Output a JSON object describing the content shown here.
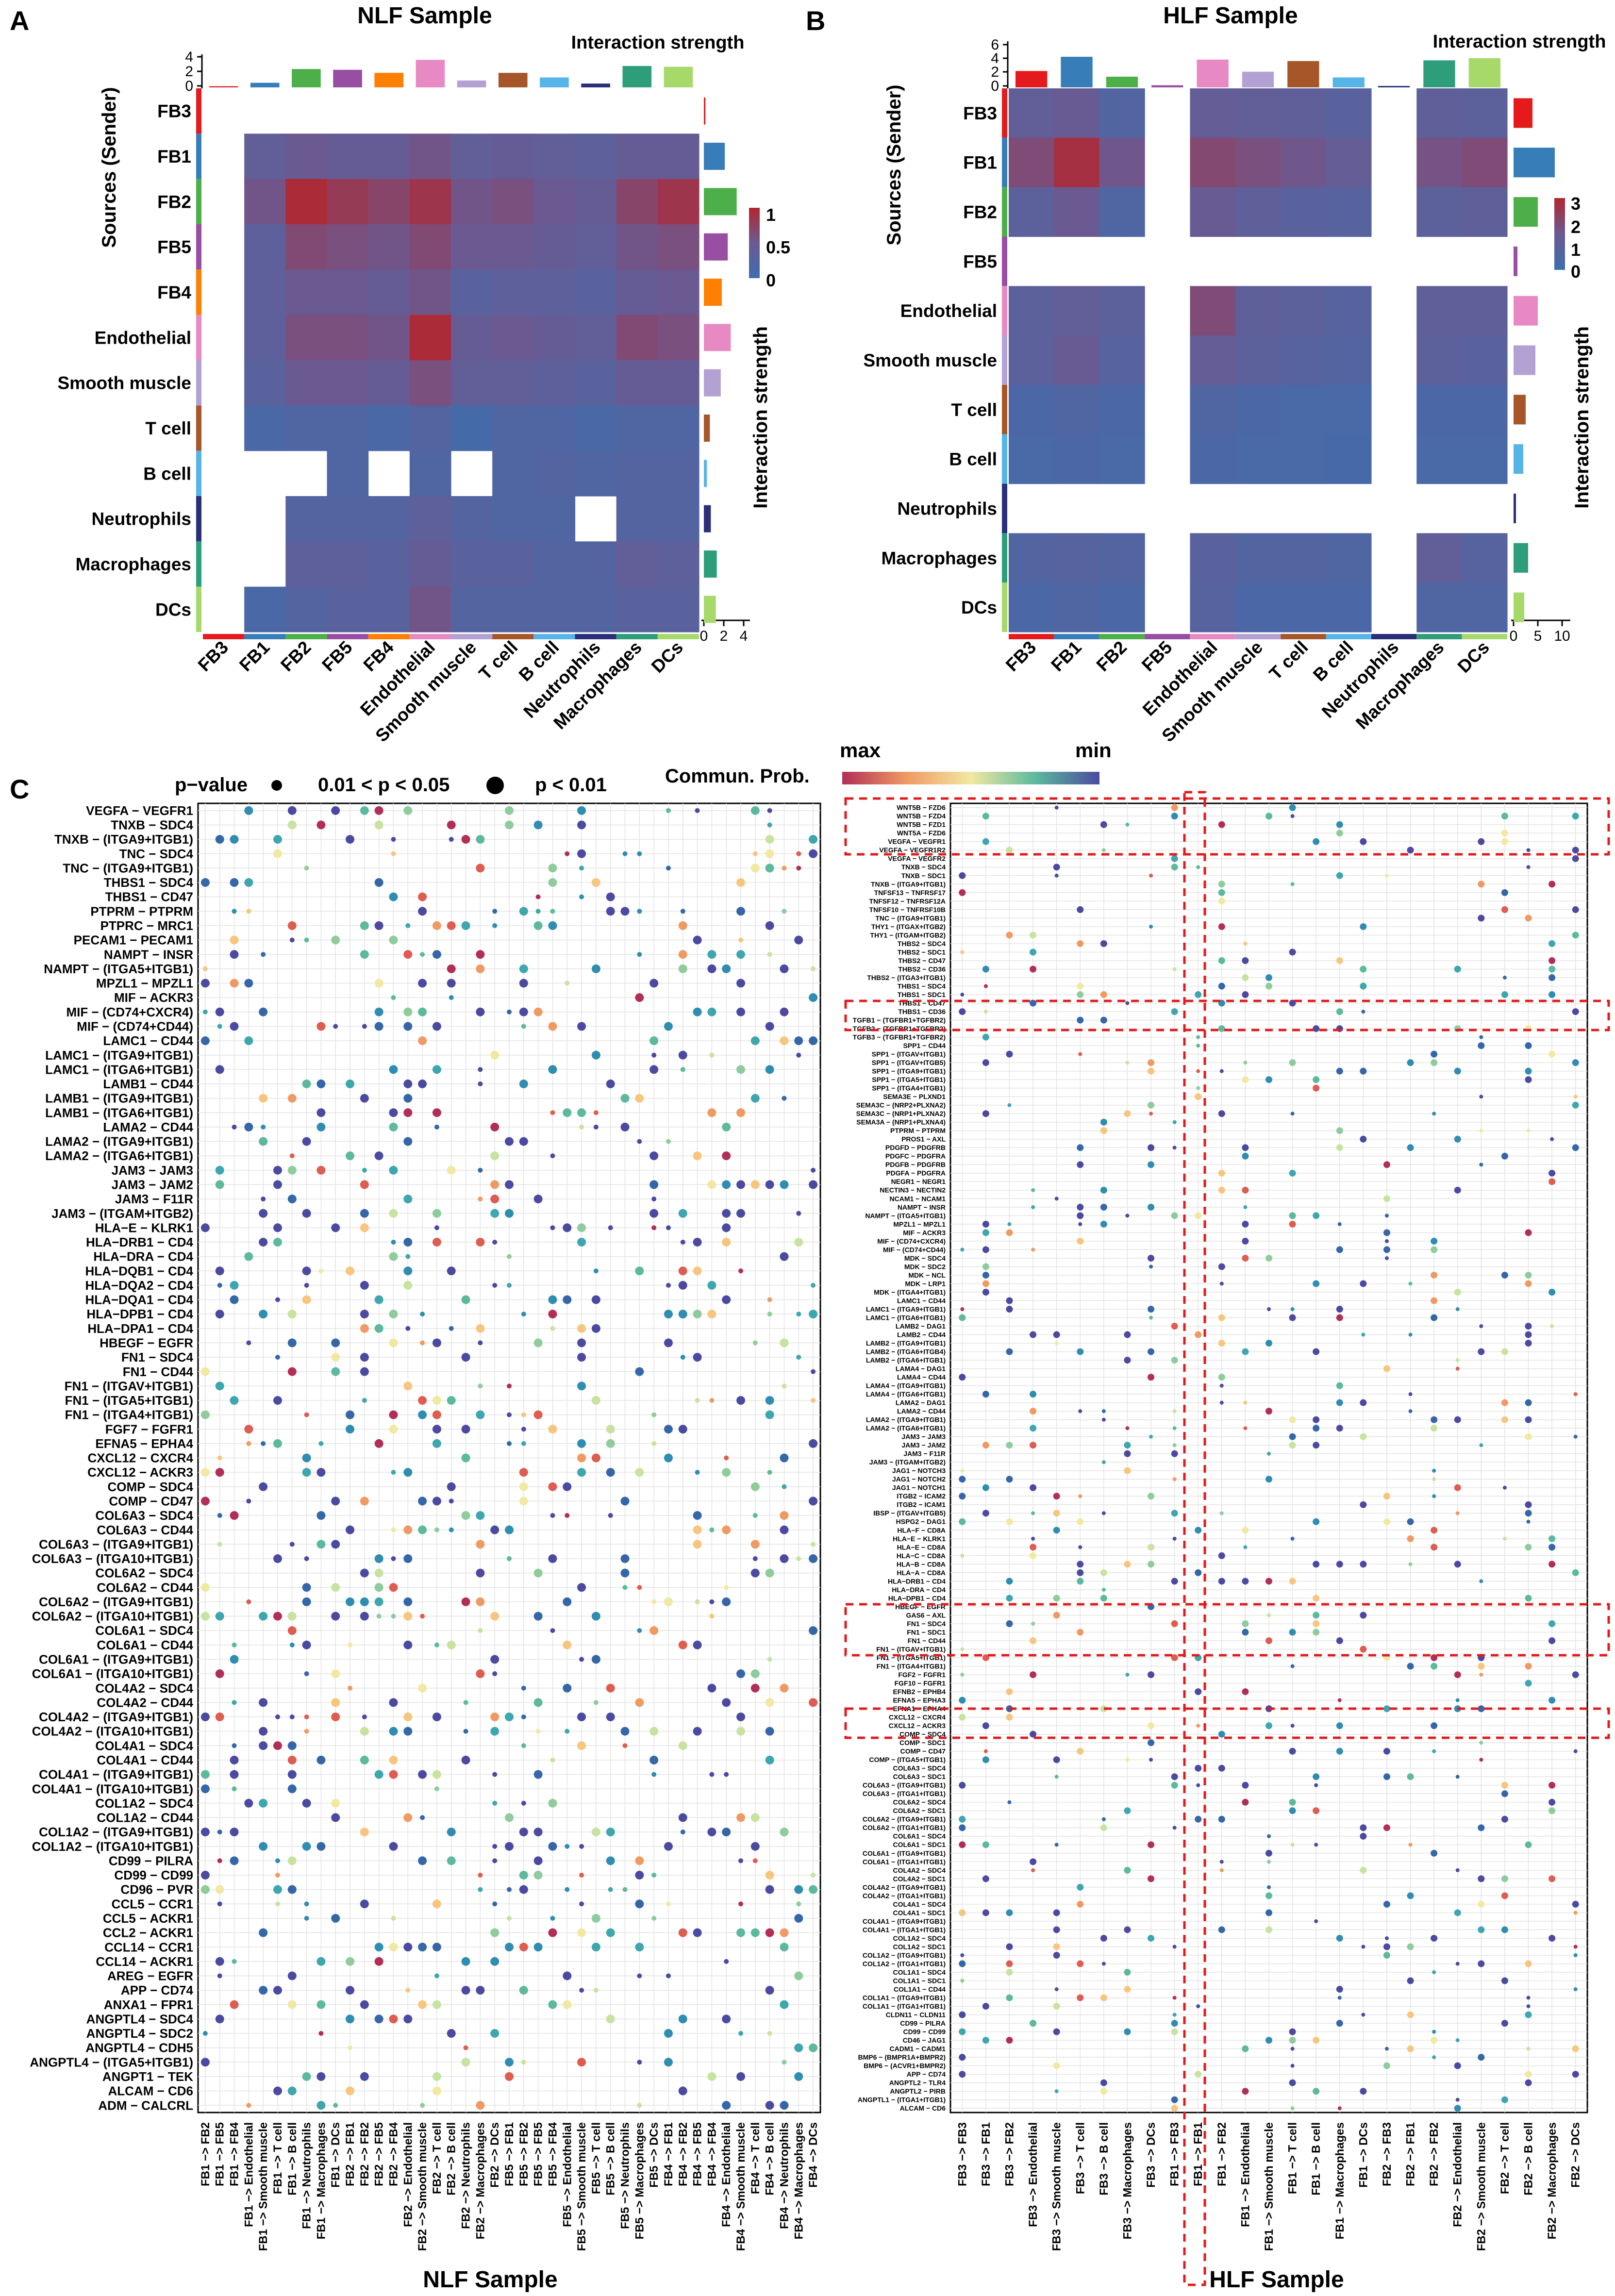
{
  "palette": {
    "FB3": "#E41A1C",
    "FB1": "#377EB8",
    "FB2": "#4DAF4A",
    "FB5": "#984EA3",
    "FB4": "#FF7F00",
    "Endothelial": "#E78AC3",
    "Smooth muscle": "#B3A1D4",
    "T cell": "#A65628",
    "B cell": "#56B4E9",
    "Neutrophils": "#2B2F7A",
    "Macrophages": "#2E9E7A",
    "DCs": "#A6D96A"
  },
  "panelA": {
    "label": "A",
    "title": "NLF Sample",
    "strength_label": "Interaction strength",
    "y_axis_title": "Sources (Sender)",
    "right_axis_title": "Interaction strength",
    "cells": [
      "FB3",
      "FB1",
      "FB2",
      "FB5",
      "FB4",
      "Endothelial",
      "Smooth muscle",
      "T cell",
      "B cell",
      "Neutrophils",
      "Macrophages",
      "DCs"
    ],
    "top_ticks": [
      "4",
      "2",
      "0"
    ],
    "right_ticks": [
      "0",
      "2",
      "4"
    ],
    "legend_ticks": [
      "1",
      "0.5",
      "0"
    ],
    "col_bar_values": [
      0.15,
      0.6,
      2.4,
      2.3,
      1.9,
      3.6,
      0.9,
      1.9,
      1.3,
      0.5,
      2.8,
      2.7
    ],
    "row_bar_values": [
      0.15,
      2.1,
      3.3,
      2.4,
      1.8,
      2.7,
      1.7,
      0.6,
      0.3,
      0.7,
      1.3,
      1.2
    ],
    "matrix": [
      [
        null,
        null,
        null,
        null,
        null,
        null,
        null,
        null,
        null,
        null,
        null,
        null
      ],
      [
        null,
        0.4,
        0.5,
        0.45,
        0.45,
        0.55,
        0.4,
        0.45,
        0.4,
        0.35,
        0.45,
        0.45
      ],
      [
        null,
        0.55,
        0.95,
        0.8,
        0.7,
        0.85,
        0.55,
        0.6,
        0.5,
        0.45,
        0.7,
        0.85
      ],
      [
        null,
        0.35,
        0.65,
        0.6,
        0.55,
        0.65,
        0.5,
        0.5,
        0.45,
        0.4,
        0.55,
        0.6
      ],
      [
        null,
        0.35,
        0.5,
        0.5,
        0.45,
        0.55,
        0.3,
        0.35,
        0.35,
        0.3,
        0.45,
        0.5
      ],
      [
        null,
        0.35,
        0.6,
        0.6,
        0.55,
        0.95,
        0.45,
        0.5,
        0.45,
        0.4,
        0.65,
        0.6
      ],
      [
        null,
        0.3,
        0.5,
        0.5,
        0.45,
        0.6,
        0.4,
        0.4,
        0.35,
        0.3,
        0.45,
        0.45
      ],
      [
        null,
        0.15,
        0.2,
        0.2,
        0.15,
        0.25,
        0.1,
        0.2,
        0.2,
        0.15,
        0.2,
        0.2
      ],
      [
        null,
        null,
        null,
        0.2,
        null,
        0.2,
        null,
        0.2,
        0.25,
        0.2,
        0.25,
        0.25
      ],
      [
        null,
        null,
        0.25,
        0.25,
        0.25,
        0.35,
        0.25,
        0.2,
        0.2,
        null,
        0.25,
        0.25
      ],
      [
        null,
        null,
        0.35,
        0.35,
        0.3,
        0.45,
        0.3,
        0.3,
        0.25,
        0.25,
        0.4,
        0.35
      ],
      [
        null,
        0.15,
        0.25,
        0.3,
        0.3,
        0.55,
        0.25,
        0.25,
        0.25,
        0.25,
        0.3,
        0.3
      ]
    ]
  },
  "panelB": {
    "label": "B",
    "title": "HLF Sample",
    "strength_label": "Interaction strength",
    "y_axis_title": "Sources (Sender)",
    "right_axis_title": "Interaction strength",
    "cells": [
      "FB3",
      "FB1",
      "FB2",
      "FB5",
      "Endothelial",
      "Smooth muscle",
      "T cell",
      "B cell",
      "Neutrophils",
      "Macrophages",
      "DCs"
    ],
    "top_ticks": [
      "6",
      "4",
      "2",
      "0"
    ],
    "right_ticks": [
      "0",
      "5",
      "10"
    ],
    "legend_ticks": [
      "3",
      "2",
      "1",
      "0"
    ],
    "col_bar_values": [
      2.3,
      4.3,
      1.5,
      0.3,
      3.9,
      2.2,
      3.7,
      1.4,
      0.2,
      3.8,
      4.1
    ],
    "row_bar_values": [
      3.9,
      8.5,
      5.0,
      0.8,
      5.0,
      4.5,
      2.5,
      2.0,
      0.5,
      3.0,
      2.2
    ],
    "matrix": [
      [
        1.2,
        1.4,
        0.7,
        null,
        1.3,
        1.2,
        1.1,
        0.9,
        null,
        1.1,
        1.0
      ],
      [
        1.9,
        2.7,
        1.6,
        null,
        2.0,
        1.8,
        1.6,
        1.3,
        null,
        1.7,
        1.9
      ],
      [
        1.0,
        1.5,
        0.6,
        null,
        1.4,
        1.1,
        0.9,
        0.8,
        null,
        1.0,
        1.1
      ],
      [
        null,
        null,
        null,
        null,
        null,
        null,
        null,
        null,
        null,
        null,
        null
      ],
      [
        1.0,
        1.2,
        1.0,
        null,
        1.9,
        1.1,
        1.0,
        0.8,
        null,
        1.1,
        1.1
      ],
      [
        1.0,
        1.4,
        0.8,
        null,
        1.3,
        1.0,
        0.8,
        0.7,
        null,
        1.0,
        0.9
      ],
      [
        0.5,
        0.6,
        0.5,
        null,
        0.6,
        0.5,
        0.4,
        0.4,
        null,
        0.5,
        0.5
      ],
      [
        0.4,
        0.5,
        0.4,
        null,
        0.5,
        0.4,
        0.4,
        0.3,
        null,
        0.4,
        0.4
      ],
      [
        null,
        null,
        null,
        null,
        null,
        null,
        null,
        null,
        null,
        null,
        null
      ],
      [
        0.7,
        0.8,
        0.7,
        null,
        0.9,
        0.7,
        0.7,
        0.6,
        null,
        1.2,
        0.8
      ],
      [
        0.5,
        0.6,
        0.5,
        null,
        0.8,
        0.5,
        0.5,
        0.5,
        null,
        0.6,
        0.6
      ]
    ]
  },
  "panelC": {
    "label": "C",
    "pvalue_label": "p−value",
    "p_small_label": "0.01 < p < 0.05",
    "p_large_label": "p < 0.01",
    "prob_label": "Commun. Prob.",
    "max_label": "max",
    "min_label": "min",
    "left_title": "NLF Sample",
    "right_title": "HLF Sample",
    "left_rows": [
      "VEGFA − VEGFR1",
      "TNXB − SDC4",
      "TNXB − (ITGA9+ITGB1)",
      "TNC − SDC4",
      "TNC − (ITGA9+ITGB1)",
      "THBS1 − SDC4",
      "THBS1 − CD47",
      "PTPRM − PTPRM",
      "PTPRC − MRC1",
      "PECAM1 − PECAM1",
      "NAMPT − INSR",
      "NAMPT − (ITGA5+ITGB1)",
      "MPZL1 − MPZL1",
      "MIF − ACKR3",
      "MIF − (CD74+CXCR4)",
      "MIF − (CD74+CD44)",
      "LAMC1 − CD44",
      "LAMC1 − (ITGA9+ITGB1)",
      "LAMC1 − (ITGA6+ITGB1)",
      "LAMB1 − CD44",
      "LAMB1 − (ITGA9+ITGB1)",
      "LAMB1 − (ITGA6+ITGB1)",
      "LAMA2 − CD44",
      "LAMA2 − (ITGA9+ITGB1)",
      "LAMA2 − (ITGA6+ITGB1)",
      "JAM3 − JAM3",
      "JAM3 − JAM2",
      "JAM3 − F11R",
      "JAM3 − (ITGAM+ITGB2)",
      "HLA−E − KLRK1",
      "HLA−DRB1 − CD4",
      "HLA−DRA − CD4",
      "HLA−DQB1 − CD4",
      "HLA−DQA2 − CD4",
      "HLA−DQA1 − CD4",
      "HLA−DPB1 − CD4",
      "HLA−DPA1 − CD4",
      "HBEGF − EGFR",
      "FN1 − SDC4",
      "FN1 − CD44",
      "FN1 − (ITGAV+ITGB1)",
      "FN1 − (ITGA5+ITGB1)",
      "FN1 − (ITGA4+ITGB1)",
      "FGF7 − FGFR1",
      "EFNA5 − EPHA4",
      "CXCL12 − CXCR4",
      "CXCL12 − ACKR3",
      "COMP − SDC4",
      "COMP − CD47",
      "COL6A3 − SDC4",
      "COL6A3 − CD44",
      "COL6A3 − (ITGA9+ITGB1)",
      "COL6A3 − (ITGA10+ITGB1)",
      "COL6A2 − SDC4",
      "COL6A2 − CD44",
      "COL6A2 − (ITGA9+ITGB1)",
      "COL6A2 − (ITGA10+ITGB1)",
      "COL6A1 − SDC4",
      "COL6A1 − CD44",
      "COL6A1 − (ITGA9+ITGB1)",
      "COL6A1 − (ITGA10+ITGB1)",
      "COL4A2 − SDC4",
      "COL4A2 − CD44",
      "COL4A2 − (ITGA9+ITGB1)",
      "COL4A2 − (ITGA10+ITGB1)",
      "COL4A1 − SDC4",
      "COL4A1 − CD44",
      "COL4A1 − (ITGA9+ITGB1)",
      "COL4A1 − (ITGA10+ITGB1)",
      "COL1A2 − SDC4",
      "COL1A2 − CD44",
      "COL1A2 − (ITGA9+ITGB1)",
      "COL1A2 − (ITGA10+ITGB1)",
      "CD99 − PILRA",
      "CD99 − CD99",
      "CD96 − PVR",
      "CCL5 − CCR1",
      "CCL5 − ACKR1",
      "CCL2 − ACKR1",
      "CCL14 − CCR1",
      "CCL14 − ACKR1",
      "AREG − EGFR",
      "APP − CD74",
      "ANXA1 − FPR1",
      "ANGPTL4 − SDC4",
      "ANGPTL4 − SDC2",
      "ANGPTL4 − CDH5",
      "ANGPTL4 − (ITGA5+ITGB1)",
      "ANGPT1 − TEK",
      "ALCAM − CD6",
      "ADM − CALCRL"
    ],
    "left_cols": [
      "FB1 −> FB2",
      "FB1 −> FB5",
      "FB1 −> FB4",
      "FB1 −> Endothelial",
      "FB1 −> Smooth muscle",
      "FB1 −> T cell",
      "FB1 −> B cell",
      "FB1 −> Neutrophils",
      "FB1 −> Macrophages",
      "FB1 −> DCs",
      "FB2 −> FB1",
      "FB2 −> FB2",
      "FB2 −> FB5",
      "FB2 −> FB4",
      "FB2 −> Endothelial",
      "FB2 −> Smooth muscle",
      "FB2 −> T cell",
      "FB2 −> B cell",
      "FB2 −> Neutrophils",
      "FB2 −> Macrophages",
      "FB2 −> DCs",
      "FB5 −> FB1",
      "FB5 −> FB2",
      "FB5 −> FB5",
      "FB5 −> FB4",
      "FB5 −> Endothelial",
      "FB5 −> Smooth muscle",
      "FB5 −> T cell",
      "FB5 −> B cell",
      "FB5 −> Neutrophils",
      "FB5 −> Macrophages",
      "FB5 −> DCs",
      "FB4 −> FB1",
      "FB4 −> FB2",
      "FB4 −> FB5",
      "FB4 −> FB4",
      "FB4 −> Endothelial",
      "FB4 −> Smooth muscle",
      "FB4 −> T cell",
      "FB4 −> B cell",
      "FB4 −> Neutrophils",
      "FB4 −> Macrophages",
      "FB4 −> DCs"
    ],
    "right_cols": [
      "FB3 −> FB3",
      "FB3 −> FB1",
      "FB3 −> FB2",
      "FB3 −> Endothelial",
      "FB3 −> Smooth muscle",
      "FB3 −> T cell",
      "FB3 −> B cell",
      "FB3 −> Macrophages",
      "FB3 −> DCs",
      "FB1 −> FB3",
      "FB1 −> FB1",
      "FB1 −> FB2",
      "FB1 −> Endothelial",
      "FB1 −> Smooth muscle",
      "FB1 −> T cell",
      "FB1 −> B cell",
      "FB1 −> Macrophages",
      "FB1 −> DCs",
      "FB2 −> FB3",
      "FB2 −> FB1",
      "FB2 −> FB2",
      "FB2 −> Endothelial",
      "FB2 −> Smooth muscle",
      "FB2 −> T cell",
      "FB2 −> B cell",
      "FB2 −> Macrophages",
      "FB2 −> DCs"
    ],
    "right_rows": [
      "WNT5B − FZD6",
      "WNT5B − FZD4",
      "WNT5B − FZD1",
      "WNT5A − FZD6",
      "VEGFA − VEGFR1",
      "VEGFA − VEGFR1R2",
      "VEGFA − VEGFR2",
      "TNXB − SDC4",
      "TNXB − SDC1",
      "TNXB − (ITGA9+ITGB1)",
      "TNFSF13 − TNFRSF17",
      "TNFSF12 − TNFRSF12A",
      "TNFSF10 − TNFRSF10B",
      "TNC − (ITGA9+ITGB1)",
      "THY1 − (ITGAX+ITGB2)",
      "THY1 − (ITGAM+ITGB2)",
      "THBS2 − SDC4",
      "THBS2 − SDC1",
      "THBS2 − CD47",
      "THBS2 − CD36",
      "THBS2 − (ITGA3+ITGB1)",
      "THBS1 − SDC4",
      "THBS1 − SDC1",
      "THBS1 − CD47",
      "THBS1 − CD36",
      "TGFB1 − (TGFBR1+TGFBR2)",
      "TGFB2 − (TGFBR1+TGFBR2)",
      "TGFB3 − (TGFBR1+TGFBR2)",
      "SPP1 − CD44",
      "SPP1 − (ITGAV+ITGB1)",
      "SPP1 − (ITGAV+ITGB5)",
      "SPP1 − (ITGA9+ITGB1)",
      "SPP1 − (ITGA5+ITGB1)",
      "SPP1 − (ITGA4+ITGB1)",
      "SEMA3E − PLXND1",
      "SEMA3C − (NRP2+PLXNA2)",
      "SEMA3C − (NRP1+PLXNA2)",
      "SEMA3A − (NRP1+PLXNA4)",
      "PTPRM − PTPRM",
      "PROS1 − AXL",
      "PDGFD − PDGFRB",
      "PDGFC − PDGFRA",
      "PDGFB − PDGFRB",
      "PDGFA − PDGFRA",
      "NEGR1 − NEGR1",
      "NECTIN3 − NECTIN2",
      "NCAM1 − NCAM1",
      "NAMPT − INSR",
      "NAMPT − (ITGA5+ITGB1)",
      "MPZL1 − MPZL1",
      "MIF − ACKR3",
      "MIF − (CD74+CXCR4)",
      "MIF − (CD74+CD44)",
      "MDK − SDC4",
      "MDK − SDC2",
      "MDK − NCL",
      "MDK − LRP1",
      "MDK − (ITGA4+ITGB1)",
      "LAMC1 − CD44",
      "LAMC1 − (ITGA9+ITGB1)",
      "LAMC1 − (ITGA6+ITGB1)",
      "LAMB2 − DAG1",
      "LAMB2 − CD44",
      "LAMB2 − (ITGA9+ITGB1)",
      "LAMB2 − (ITGA6+ITGB4)",
      "LAMB2 − (ITGA6+ITGB1)",
      "LAMA4 − DAG1",
      "LAMA4 − CD44",
      "LAMA4 − (ITGA9+ITGB1)",
      "LAMA4 − (ITGA6+ITGB1)",
      "LAMA2 − DAG1",
      "LAMA2 − CD44",
      "LAMA2 − (ITGA9+ITGB1)",
      "LAMA2 − (ITGA6+ITGB1)",
      "JAM3 − JAM3",
      "JAM3 − JAM2",
      "JAM3 − F11R",
      "JAM3 − (ITGAM+ITGB2)",
      "JAG1 − NOTCH3",
      "JAG1 − NOTCH2",
      "JAG1 − NOTCH1",
      "ITGB2 − ICAM2",
      "ITGB2 − ICAM1",
      "IBSP − (ITGAV+ITGB5)",
      "HSPG2 − DAG1",
      "HLA−F − CD8A",
      "HLA−E − KLRK1",
      "HLA−E − CD8A",
      "HLA−C − CD8A",
      "HLA−B − CD8A",
      "HLA−A − CD8A",
      "HLA−DRB1 − CD4",
      "HLA−DRA − CD4",
      "HLA−DPB1 − CD4",
      "HBEGF − EGFR",
      "GAS6 − AXL",
      "FN1 − SDC4",
      "FN1 − SDC1",
      "FN1 − CD44",
      "FN1 − (ITGAV+ITGB1)",
      "FN1 − (ITGA5+ITGB1)",
      "FN1 − (ITGA4+ITGB1)",
      "FGF2 − FGFR1",
      "FGF10 − FGFR1",
      "EFNB2 − EPHB4",
      "EFNA5 − EPHA3",
      "EFNA1 − EPHA4",
      "CXCL12 − CXCR4",
      "CXCL12 − ACKR3",
      "COMP − SDC4",
      "COMP − SDC1",
      "COMP − CD47",
      "COMP − (ITGA5+ITGB1)",
      "COL6A3 − SDC4",
      "COL6A3 − SDC1",
      "COL6A3 − (ITGA9+ITGB1)",
      "COL6A3 − (ITGA1+ITGB1)",
      "COL6A2 − SDC4",
      "COL6A2 − SDC1",
      "COL6A2 − (ITGA9+ITGB1)",
      "COL6A2 − (ITGA1+ITGB1)",
      "COL6A1 − SDC4",
      "COL6A1 − SDC1",
      "COL6A1 − (ITGA9+ITGB1)",
      "COL6A1 − (ITGA1+ITGB1)",
      "COL4A2 − SDC4",
      "COL4A2 − SDC1",
      "COL4A2 − (ITGA9+ITGB1)",
      "COL4A2 − (ITGA1+ITGB1)",
      "COL4A1 − SDC4",
      "COL4A1 − SDC1",
      "COL4A1 − (ITGA9+ITGB1)",
      "COL4A1 − (ITGA1+ITGB1)",
      "COL1A2 − SDC4",
      "COL1A2 − SDC1",
      "COL1A2 − (ITGA9+ITGB1)",
      "COL1A2 − (ITGA1+ITGB1)",
      "COL1A1 − SDC4",
      "COL1A1 − SDC1",
      "COL1A1 − CD44",
      "COL1A1 − (ITGA9+ITGB1)",
      "COL1A1 − (ITGA1+ITGB1)",
      "CLDN11 − CLDN11",
      "CD99 − PILRA",
      "CD99 − CD99",
      "CD46 − JAG1",
      "CADM1 − CADM1",
      "BMP6 − (BMPR1A+BMPR2)",
      "BMP6 − (ACVR1+BMPR2)",
      "APP − CD74",
      "ANGPTL2 − TLR4",
      "ANGPTL2 − PIRB",
      "ANGPTL1 − (ITGA1+ITGB1)",
      "ALCAM − CD6"
    ],
    "dot_colors": [
      "#4C4AA0",
      "#3567A8",
      "#2F8DB1",
      "#3EA6AE",
      "#5CB99D",
      "#8ECC9C",
      "#C7E39F",
      "#F1E8A2",
      "#F7C57E",
      "#F09A63",
      "#DE5C50",
      "#B22E56"
    ]
  }
}
